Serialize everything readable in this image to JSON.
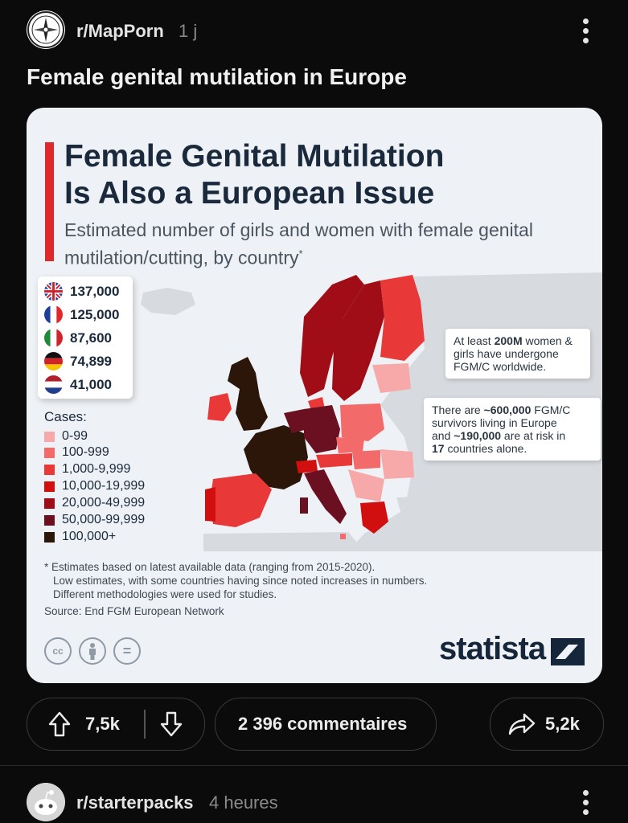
{
  "post": {
    "subreddit": "r/MapPorn",
    "age": "1 j",
    "title": "Female genital mutilation in Europe"
  },
  "infographic": {
    "title_line1": "Female Genital Mutilation",
    "title_line2": "Is Also a European Issue",
    "subtitle": "Estimated number of girls and women with female genital mutilation/cutting, by country",
    "subtitle_mark": "*",
    "top_countries": [
      {
        "flag": "uk-flag-icon",
        "value": "137,000"
      },
      {
        "flag": "france-flag-icon",
        "value": "125,000"
      },
      {
        "flag": "italy-flag-icon",
        "value": "87,600"
      },
      {
        "flag": "germany-flag-icon",
        "value": "74,899"
      },
      {
        "flag": "netherlands-flag-icon",
        "value": "41,000"
      }
    ],
    "legend_title": "Cases:",
    "legend": [
      {
        "label": "0-99",
        "color": "#f7a9a9"
      },
      {
        "label": "100-999",
        "color": "#f26a6a"
      },
      {
        "label": "1,000-9,999",
        "color": "#e83838"
      },
      {
        "label": "10,000-19,999",
        "color": "#d10f0f"
      },
      {
        "label": "20,000-49,999",
        "color": "#a00d16"
      },
      {
        "label": "50,000-99,999",
        "color": "#6b1020"
      },
      {
        "label": "100,000+",
        "color": "#2c1509"
      }
    ],
    "callout1": {
      "pre": "At least ",
      "bold": "200M",
      "post": " women & girls have undergone FGM/C worldwide."
    },
    "callout2": {
      "line1_pre": "There are ",
      "line1_bold": "~600,000",
      "line1_post": " FGM/C",
      "line2": "survivors living in Europe",
      "line3_pre": "and ",
      "line3_bold": "~190,000",
      "line3_post": " are at risk in",
      "line4_bold": "17",
      "line4_post": " countries alone."
    },
    "notes": [
      "* Estimates based on latest available data (ranging from 2015-2020).",
      "Low estimates, with some countries having since noted increases in numbers.",
      "Different methodologies were used for studies."
    ],
    "source": "Source: End FGM European Network",
    "license_icons": [
      "cc",
      "by",
      "nd"
    ],
    "license_cc": "cc",
    "license_nd": "=",
    "brand": "statista"
  },
  "actions": {
    "upvotes": "7,5k",
    "comments": "2 396 commentaires",
    "shares": "5,2k"
  },
  "next_post": {
    "subreddit": "r/starterpacks",
    "age": "4 heures"
  }
}
